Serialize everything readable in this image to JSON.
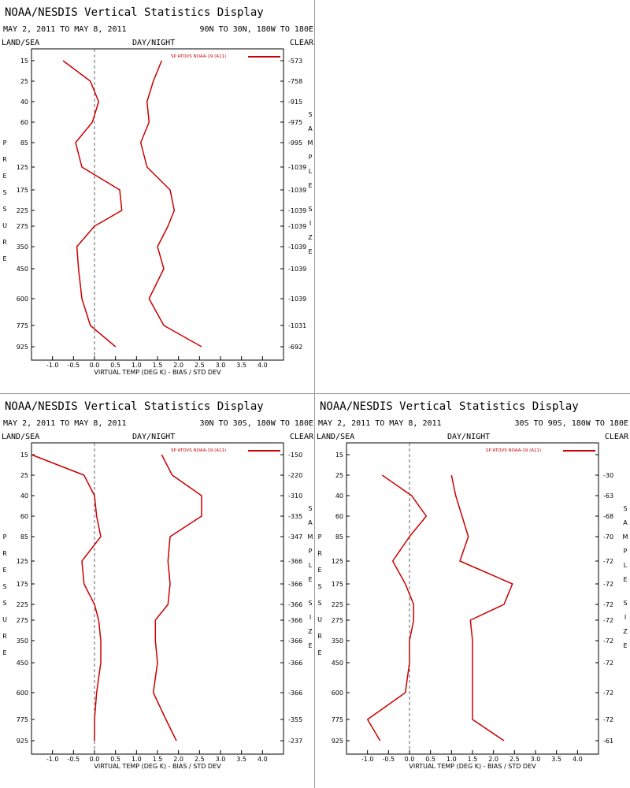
{
  "header": {
    "title": "NOAA/NESDIS Vertical Statistics Display",
    "date_range": "MAY 2, 2011 TO MAY 8, 2011",
    "land_sea": "LAND/SEA",
    "day_night": "DAY/NIGHT",
    "clear": "CLEAR",
    "pressure_label": "PRESSURE",
    "sample_size_label": "SAMPLE SIZE",
    "xlabel": "VIRTUAL TEMP (DEG K) - BIAS / STD DEV",
    "legend": "SP ATOVS NOAA-19 (A11)"
  },
  "colors": {
    "series": "#cc0000",
    "zero_line": "#666666",
    "divider": "#9a9a9a"
  },
  "chart_data": [
    {
      "type": "line",
      "region": "90N TO 30N, 180W TO 180E",
      "pressure_levels": [
        15,
        25,
        40,
        60,
        85,
        125,
        175,
        225,
        275,
        350,
        450,
        600,
        775,
        925
      ],
      "pressure_ticks": [
        "15",
        "25",
        "40",
        "60",
        "85",
        "125",
        "175",
        "225",
        "275",
        "350",
        "450",
        "600",
        "775",
        "925"
      ],
      "sample_size": [
        "573",
        "758",
        "915",
        "975",
        "995",
        "1039",
        "1039",
        "1039",
        "1039",
        "1039",
        "1039",
        "1039",
        "1031",
        "692"
      ],
      "xlim": [
        -1.5,
        4.5
      ],
      "xticks": [
        "-1.0",
        "-0.5",
        "0.0",
        "0.5",
        "1.0",
        "1.5",
        "2.0",
        "2.5",
        "3.0",
        "3.5",
        "4.0"
      ],
      "series": [
        {
          "name": "BIAS",
          "values": [
            -0.75,
            -0.1,
            0.1,
            -0.05,
            -0.45,
            -0.3,
            0.6,
            0.65,
            0.0,
            -0.42,
            -0.38,
            -0.3,
            -0.1,
            0.5
          ]
        },
        {
          "name": "STD DEV",
          "values": [
            1.6,
            1.4,
            1.25,
            1.3,
            1.1,
            1.25,
            1.8,
            1.9,
            1.75,
            1.5,
            1.65,
            1.3,
            1.65,
            2.55
          ]
        }
      ]
    },
    {
      "type": "line",
      "region": "30N TO 30S, 180W TO 180E",
      "pressure_levels": [
        15,
        25,
        40,
        60,
        85,
        125,
        175,
        225,
        275,
        350,
        450,
        600,
        775,
        925
      ],
      "pressure_ticks": [
        "15",
        "25",
        "40",
        "60",
        "85",
        "125",
        "175",
        "225",
        "275",
        "350",
        "450",
        "600",
        "775",
        "925"
      ],
      "sample_size": [
        "150",
        "220",
        "310",
        "335",
        "347",
        "366",
        "366",
        "366",
        "366",
        "366",
        "366",
        "366",
        "355",
        "237"
      ],
      "xlim": [
        -1.5,
        4.5
      ],
      "xticks": [
        "-1.0",
        "-0.5",
        "0.0",
        "0.5",
        "1.0",
        "1.5",
        "2.0",
        "2.5",
        "3.0",
        "3.5",
        "4.0"
      ],
      "series": [
        {
          "name": "BIAS",
          "values": [
            -1.5,
            -0.25,
            0.0,
            0.05,
            0.15,
            -0.3,
            -0.25,
            0.0,
            0.1,
            0.15,
            0.15,
            0.05,
            0.0,
            0.0
          ]
        },
        {
          "name": "STD DEV",
          "values": [
            1.6,
            1.85,
            2.55,
            2.55,
            1.8,
            1.75,
            1.8,
            1.75,
            1.45,
            1.45,
            1.5,
            1.4,
            1.7,
            1.95
          ]
        }
      ]
    },
    {
      "type": "line",
      "region": "30S TO 90S, 180W TO 180E",
      "pressure_levels": [
        15,
        25,
        40,
        60,
        85,
        125,
        175,
        225,
        275,
        350,
        450,
        600,
        775,
        925
      ],
      "pressure_ticks": [
        "15",
        "25",
        "40",
        "60",
        "85",
        "125",
        "175",
        "225",
        "275",
        "350",
        "450",
        "600",
        "775",
        "925"
      ],
      "sample_size": [
        "",
        "30",
        "63",
        "68",
        "70",
        "72",
        "72",
        "72",
        "72",
        "72",
        "72",
        "72",
        "72",
        "61"
      ],
      "xlim": [
        -1.5,
        4.5
      ],
      "xticks": [
        "-1.0",
        "-0.5",
        "0.0",
        "0.5",
        "1.0",
        "1.5",
        "2.0",
        "2.5",
        "3.0",
        "3.5",
        "4.0"
      ],
      "series": [
        {
          "name": "BIAS",
          "values": [
            null,
            -0.65,
            0.05,
            0.4,
            0.0,
            -0.4,
            -0.1,
            0.1,
            0.1,
            0.0,
            0.0,
            -0.1,
            -1.0,
            -0.7
          ]
        },
        {
          "name": "STD DEV",
          "values": [
            null,
            1.0,
            1.1,
            1.25,
            1.4,
            1.2,
            2.45,
            2.25,
            1.45,
            1.5,
            1.5,
            1.5,
            1.5,
            2.25
          ]
        }
      ]
    }
  ]
}
